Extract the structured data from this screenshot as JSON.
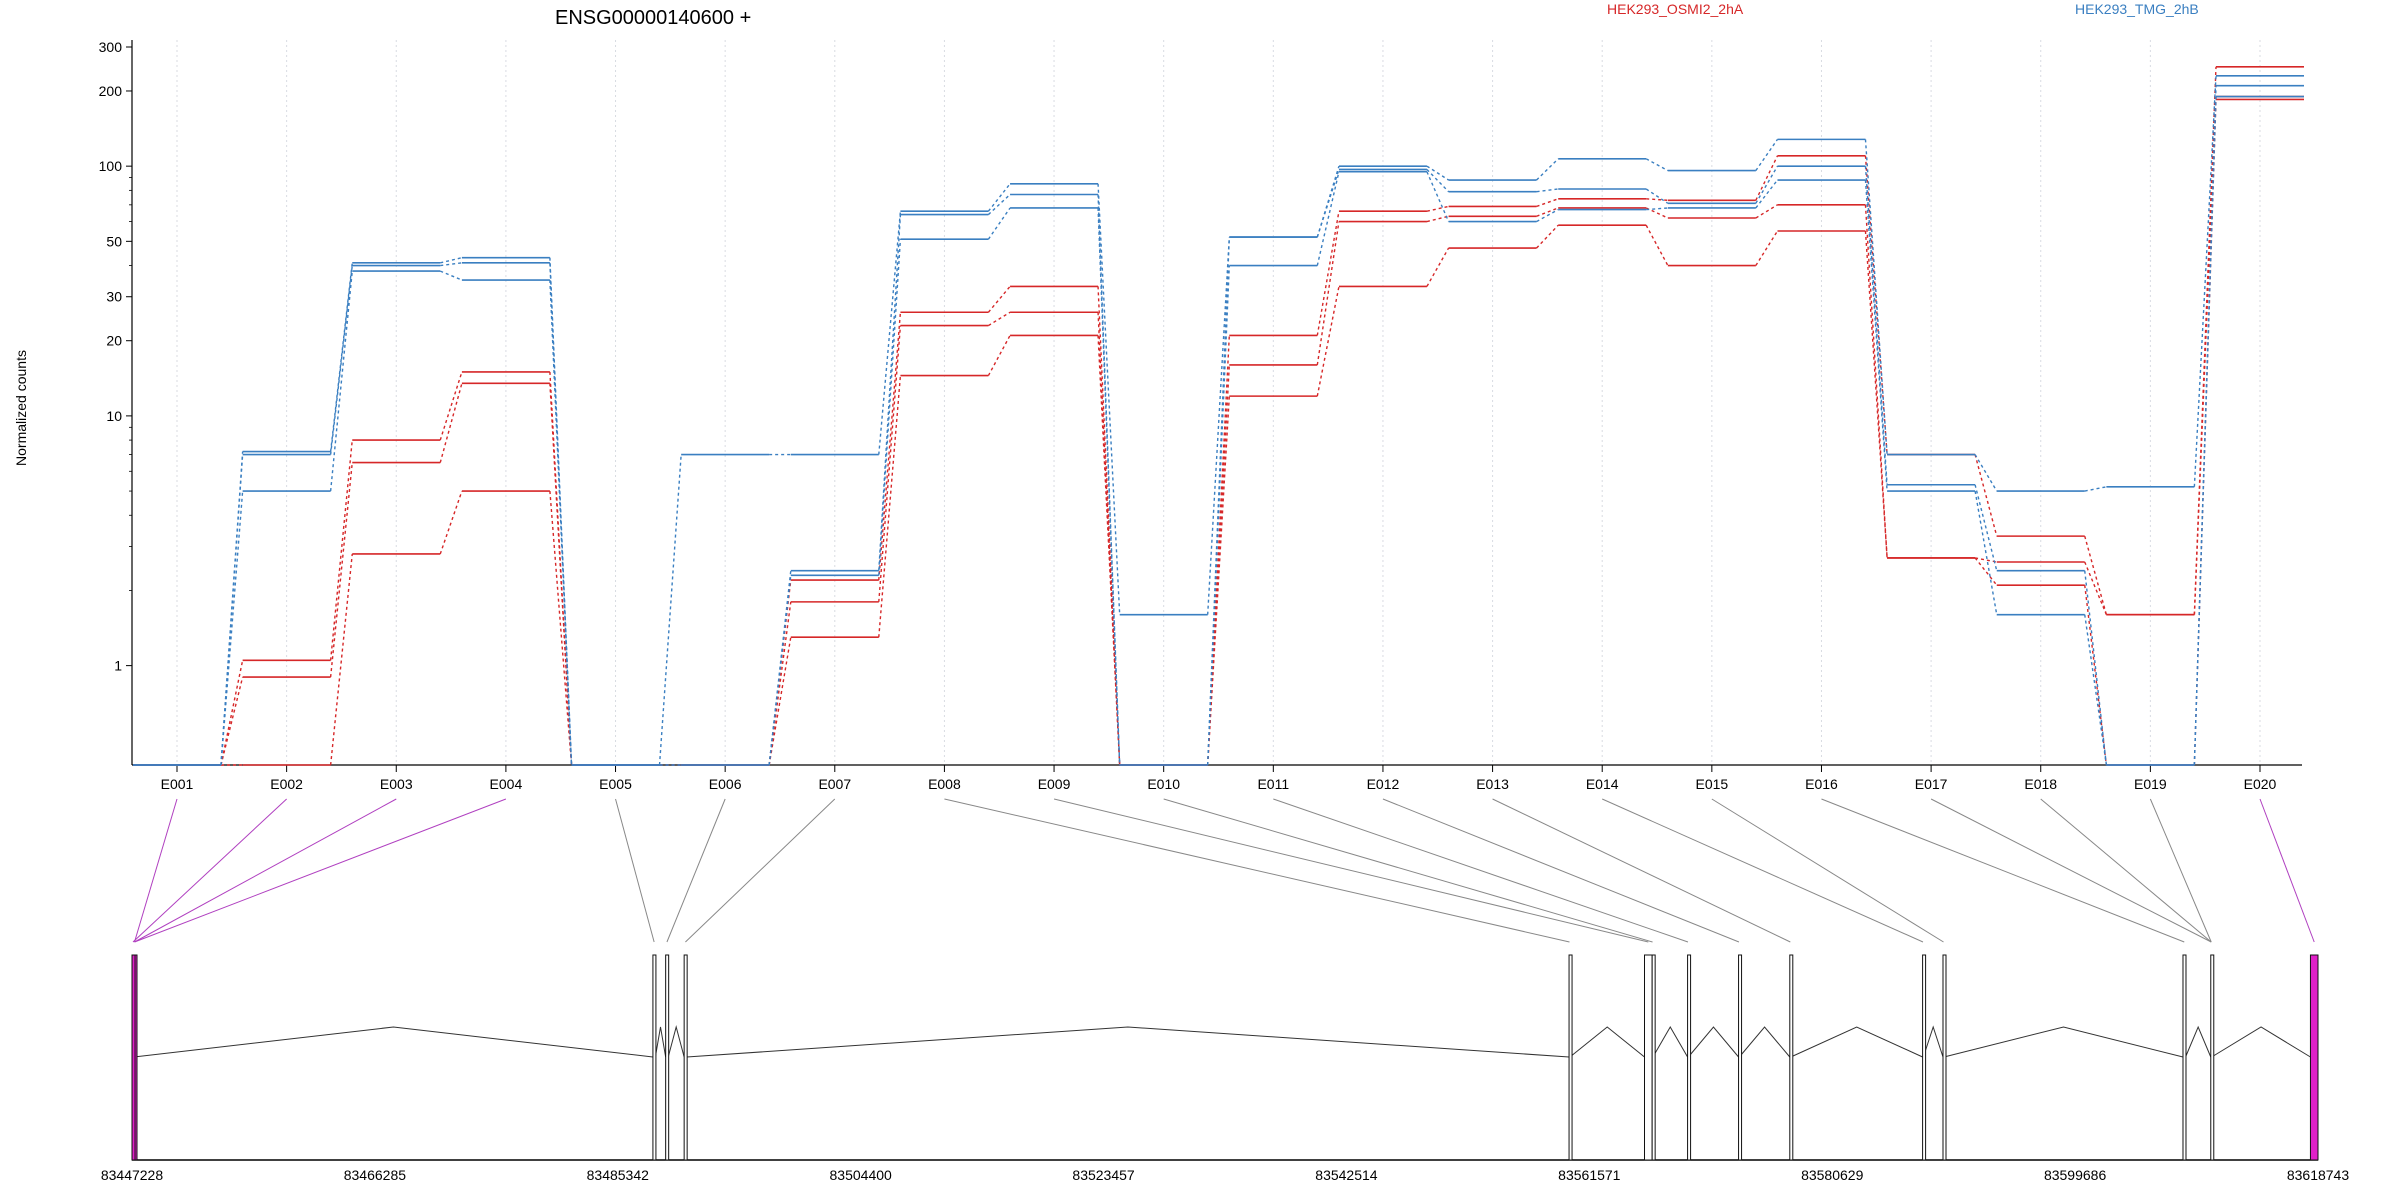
{
  "chart_data": {
    "type": "line",
    "title": "ENSG00000140600 +",
    "ylabel": "Normalized counts",
    "xlabel": "",
    "yscale": "log",
    "ylim": [
      0.4,
      320
    ],
    "yticks": [
      1,
      10,
      20,
      30,
      50,
      100,
      200,
      300
    ],
    "legend": [
      {
        "label": "HEK293_OSMI2_2hA",
        "color": "#d62728"
      },
      {
        "label": "HEK293_TMG_2hB",
        "color": "#3a7fc1"
      }
    ],
    "grid": "vertical dotted at exon centers",
    "categories": [
      "E001",
      "E002",
      "E003",
      "E004",
      "E005",
      "E006",
      "E007",
      "E008",
      "E009",
      "E010",
      "E011",
      "E012",
      "E013",
      "E014",
      "E015",
      "E016",
      "E017",
      "E018",
      "E019",
      "E020"
    ],
    "series": [
      {
        "color": "#d62728",
        "values": [
          0.4,
          0.4,
          2.8,
          5.0,
          0.4,
          0.4,
          1.3,
          14.5,
          21.0,
          0.4,
          12.0,
          33.0,
          47.0,
          58.0,
          40.0,
          55.0,
          2.7,
          2.1,
          0.4,
          185
        ]
      },
      {
        "color": "#d62728",
        "values": [
          0.4,
          0.9,
          6.5,
          13.5,
          0.4,
          0.4,
          1.8,
          23.0,
          26.0,
          0.4,
          16.0,
          60.0,
          63.0,
          68.0,
          62.0,
          70.0,
          2.7,
          2.6,
          1.6,
          190
        ]
      },
      {
        "color": "#d62728",
        "values": [
          0.4,
          1.05,
          8.0,
          15.0,
          0.4,
          0.4,
          2.2,
          26.0,
          33.0,
          0.4,
          21.0,
          66.0,
          69.0,
          74.0,
          73.0,
          110.0,
          7.0,
          3.3,
          1.6,
          250
        ]
      },
      {
        "color": "#3a7fc1",
        "values": [
          0.4,
          5.0,
          38.0,
          35.0,
          0.4,
          0.4,
          2.3,
          51.0,
          68.0,
          0.4,
          40.0,
          95.0,
          60.0,
          67.0,
          68.0,
          88.0,
          5.0,
          1.6,
          0.4,
          190
        ]
      },
      {
        "color": "#3a7fc1",
        "values": [
          0.4,
          7.0,
          40.0,
          41.0,
          0.4,
          0.4,
          2.4,
          64.0,
          77.0,
          0.4,
          52.0,
          97.0,
          79.0,
          81.0,
          71.0,
          100.0,
          5.3,
          2.4,
          0.4,
          210
        ]
      },
      {
        "color": "#3a7fc1",
        "values": [
          0.4,
          7.2,
          41.0,
          43.0,
          0.4,
          7.0,
          7.0,
          66.0,
          85.0,
          1.6,
          52.0,
          100.0,
          88.0,
          107.0,
          96.0,
          128.0,
          7.0,
          5.0,
          5.2,
          230
        ]
      }
    ],
    "genome": {
      "coord_ticks": [
        "83447228",
        "83466285",
        "83485342",
        "83504400",
        "83523457",
        "83542514",
        "83561571",
        "83580629",
        "83599686",
        "83618743"
      ],
      "coord_range": [
        83447228,
        83618743
      ],
      "exons": [
        {
          "start": 83447228,
          "end": 83447620,
          "color": "#e020c8"
        },
        {
          "start": 83447230,
          "end": 83447380,
          "color": "#e020c8"
        },
        {
          "start": 83447228,
          "end": 83447620,
          "color": "#e020c8"
        },
        {
          "start": 83447228,
          "end": 83447620,
          "color": "#e020c8"
        },
        {
          "start": 83488100,
          "end": 83488290,
          "color": "#ffffff"
        },
        {
          "start": 83489100,
          "end": 83489300,
          "color": "#ffffff"
        },
        {
          "start": 83490550,
          "end": 83490750,
          "color": "#ffffff"
        },
        {
          "start": 83559980,
          "end": 83560050,
          "color": "#ffffff"
        },
        {
          "start": 83565900,
          "end": 83566500,
          "color": "#ffffff"
        },
        {
          "start": 83566500,
          "end": 83566560,
          "color": "#ffffff"
        },
        {
          "start": 83569280,
          "end": 83569340,
          "color": "#ffffff"
        },
        {
          "start": 83573280,
          "end": 83573340,
          "color": "#ffffff"
        },
        {
          "start": 83577300,
          "end": 83577380,
          "color": "#ffffff"
        },
        {
          "start": 83587720,
          "end": 83587780,
          "color": "#ffffff"
        },
        {
          "start": 83589320,
          "end": 83589400,
          "color": "#ffffff"
        },
        {
          "start": 83608150,
          "end": 83608350,
          "color": "#ffffff"
        },
        {
          "start": 83610330,
          "end": 83610400,
          "color": "#ffffff"
        },
        {
          "start": 83610330,
          "end": 83610400,
          "color": "#ffffff"
        },
        {
          "start": 83610330,
          "end": 83610400,
          "color": "#ffffff"
        },
        {
          "start": 83618150,
          "end": 83618743,
          "color": "#e020c8"
        }
      ]
    }
  }
}
